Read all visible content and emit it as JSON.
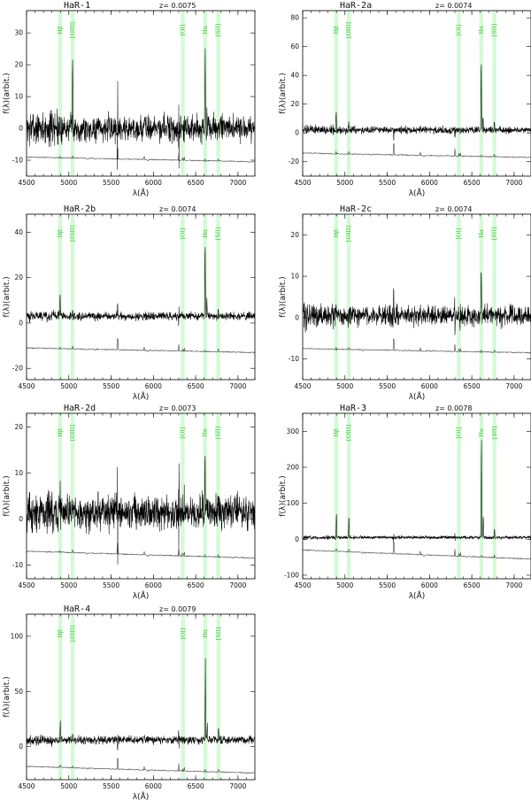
{
  "chart_data": [
    {
      "type": "line",
      "title": "HaR-1",
      "z_label": "z= 0.0075",
      "xlabel": "λ(Å)",
      "ylabel": "f(λ)(arbit.)",
      "xlim": [
        4500,
        7200
      ],
      "ylim": [
        -15,
        37
      ],
      "xticks": [
        4500,
        5000,
        5500,
        6000,
        6500,
        7000
      ],
      "yticks": [
        -10,
        0,
        10,
        20,
        30
      ],
      "object_baseline": 0,
      "object_noise": 3.5,
      "template_offset": -9,
      "template_slope": -1.5,
      "lines": [
        {
          "wl": 4861,
          "amp": 6
        },
        {
          "wl": 5007,
          "amp": 21
        },
        {
          "wl": 6563,
          "amp": 26
        },
        {
          "wl": 6584,
          "amp": 6
        },
        {
          "wl": 6717,
          "amp": 2
        }
      ]
    },
    {
      "type": "line",
      "title": "HaR-2a",
      "z_label": "z= 0.0074",
      "xlabel": "λ(Å)",
      "ylabel": "f(λ)(arbit.)",
      "xlim": [
        4500,
        7200
      ],
      "ylim": [
        -30,
        85
      ],
      "xticks": [
        4500,
        5000,
        5500,
        6000,
        6500,
        7000
      ],
      "yticks": [
        -20,
        0,
        20,
        40,
        60,
        80
      ],
      "object_baseline": 2,
      "object_noise": 2,
      "template_offset": -14,
      "template_slope": -3,
      "lines": [
        {
          "wl": 4861,
          "amp": 14
        },
        {
          "wl": 5007,
          "amp": 5
        },
        {
          "wl": 6563,
          "amp": 52
        },
        {
          "wl": 6584,
          "amp": 10
        },
        {
          "wl": 6717,
          "amp": 7
        }
      ]
    },
    {
      "type": "line",
      "title": "HaR-2b",
      "z_label": "z= 0.0074",
      "xlabel": "λ(Å)",
      "ylabel": "f(λ)(arbit.)",
      "xlim": [
        4500,
        7200
      ],
      "ylim": [
        -25,
        48
      ],
      "xticks": [
        4500,
        5000,
        5500,
        6000,
        6500,
        7000
      ],
      "yticks": [
        -20,
        0,
        20,
        40
      ],
      "object_baseline": 3,
      "object_noise": 1.5,
      "template_offset": -11,
      "template_slope": -2,
      "lines": [
        {
          "wl": 4861,
          "amp": 10
        },
        {
          "wl": 5007,
          "amp": 3
        },
        {
          "wl": 6563,
          "amp": 33
        },
        {
          "wl": 6584,
          "amp": 7
        },
        {
          "wl": 6717,
          "amp": 4
        }
      ]
    },
    {
      "type": "line",
      "title": "HaR-2c",
      "z_label": "z= 0.0074",
      "xlabel": "λ(Å)",
      "ylabel": "f(λ)(arbit.)",
      "xlim": [
        4500,
        7200
      ],
      "ylim": [
        -15,
        25
      ],
      "xticks": [
        4500,
        5000,
        5500,
        6000,
        6500,
        7000
      ],
      "yticks": [
        -10,
        0,
        10,
        20
      ],
      "object_baseline": 0.5,
      "object_noise": 2,
      "template_offset": -7.5,
      "template_slope": -1,
      "lines": [
        {
          "wl": 4861,
          "amp": 2
        },
        {
          "wl": 5007,
          "amp": 1
        },
        {
          "wl": 6563,
          "amp": 11
        },
        {
          "wl": 6584,
          "amp": 3
        },
        {
          "wl": 6717,
          "amp": 1
        }
      ]
    },
    {
      "type": "line",
      "title": "HaR-2d",
      "z_label": "z= 0.0073",
      "xlabel": "λ(Å)",
      "ylabel": "f(λ)(arbit.)",
      "xlim": [
        4500,
        7200
      ],
      "ylim": [
        -13,
        23
      ],
      "xticks": [
        4500,
        5000,
        5500,
        6000,
        6500,
        7000
      ],
      "yticks": [
        -10,
        0,
        10,
        20
      ],
      "object_baseline": 1.5,
      "object_noise": 3,
      "template_offset": -7,
      "template_slope": -1.5,
      "lines": [
        {
          "wl": 4861,
          "amp": 2
        },
        {
          "wl": 5007,
          "amp": 1
        },
        {
          "wl": 6563,
          "amp": 11
        },
        {
          "wl": 6584,
          "amp": 3
        },
        {
          "wl": 6717,
          "amp": 1
        }
      ]
    },
    {
      "type": "line",
      "title": "HaR-3",
      "z_label": "z= 0.0078",
      "xlabel": "λ(Å)",
      "ylabel": "f(λ)(arbit.)",
      "xlim": [
        4500,
        7200
      ],
      "ylim": [
        -110,
        350
      ],
      "xticks": [
        4500,
        5000,
        5500,
        6000,
        6500,
        7000
      ],
      "yticks": [
        -100,
        0,
        100,
        200,
        300
      ],
      "object_baseline": 5,
      "object_noise": 4,
      "template_offset": -30,
      "template_slope": -25,
      "lines": [
        {
          "wl": 4861,
          "amp": 70
        },
        {
          "wl": 5007,
          "amp": 60
        },
        {
          "wl": 6563,
          "amp": 290
        },
        {
          "wl": 6584,
          "amp": 60
        },
        {
          "wl": 6717,
          "amp": 25
        }
      ]
    },
    {
      "type": "line",
      "title": "HaR-4",
      "z_label": "z= 0.0079",
      "xlabel": "λ(Å)",
      "ylabel": "f(λ)(arbit.)",
      "xlim": [
        4500,
        7200
      ],
      "ylim": [
        -30,
        120
      ],
      "xticks": [
        4500,
        5000,
        5500,
        6000,
        6500,
        7000
      ],
      "yticks": [
        0,
        50,
        100
      ],
      "object_baseline": 6,
      "object_noise": 3,
      "template_offset": -18,
      "template_slope": -6,
      "lines": [
        {
          "wl": 4861,
          "amp": 18
        },
        {
          "wl": 5007,
          "amp": 5
        },
        {
          "wl": 6563,
          "amp": 72
        },
        {
          "wl": 6584,
          "amp": 15
        },
        {
          "wl": 6717,
          "amp": 10
        }
      ]
    }
  ],
  "emission_lines": [
    {
      "label": "Hβ",
      "rest": 4861
    },
    {
      "label": "[OIII]",
      "rest": 5007
    },
    {
      "label": "[OI]",
      "rest": 6300
    },
    {
      "label": "Hα",
      "rest": 6563
    },
    {
      "label": "[SII]",
      "rest": 6717
    }
  ],
  "colors": {
    "band": "#9ff59f",
    "label": "#33cc33",
    "object": "#000000",
    "template": "#444444"
  }
}
